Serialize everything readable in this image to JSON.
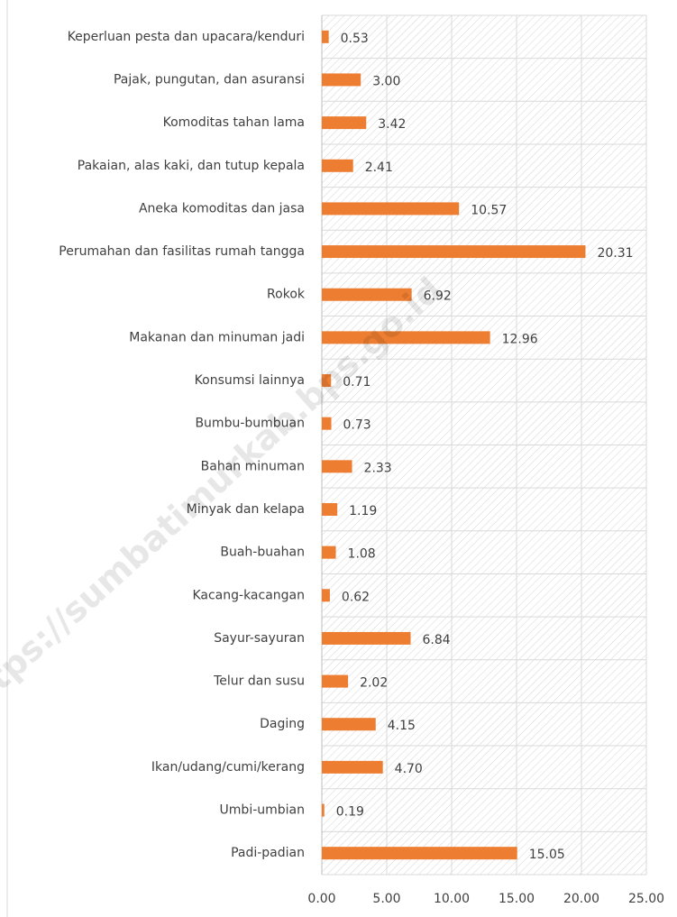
{
  "chart_data": {
    "type": "bar",
    "orientation": "horizontal",
    "categories": [
      "Keperluan pesta dan upacara/kenduri",
      "Pajak, pungutan, dan asuransi",
      "Komoditas tahan lama",
      "Pakaian, alas kaki, dan tutup kepala",
      "Aneka komoditas dan jasa",
      "Perumahan dan fasilitas rumah tangga",
      "Rokok",
      "Makanan dan minuman jadi",
      "Konsumsi lainnya",
      "Bumbu-bumbuan",
      "Bahan minuman",
      "Minyak dan kelapa",
      "Buah-buahan",
      "Kacang-kacangan",
      "Sayur-sayuran",
      "Telur dan susu",
      "Daging",
      "Ikan/udang/cumi/kerang",
      "Umbi-umbian",
      "Padi-padian"
    ],
    "values": [
      0.53,
      3.0,
      3.42,
      2.41,
      10.57,
      20.31,
      6.92,
      12.96,
      0.71,
      0.73,
      2.33,
      1.19,
      1.08,
      0.62,
      6.84,
      2.02,
      4.15,
      4.7,
      0.19,
      15.05
    ],
    "value_labels": [
      "0.53",
      "3.00",
      "3.42",
      "2.41",
      "10.57",
      "20.31",
      "6.92",
      "12.96",
      "0.71",
      "0.73",
      "2.33",
      "1.19",
      "1.08",
      "0.62",
      "6.84",
      "2.02",
      "4.15",
      "4.70",
      "0.19",
      "15.05"
    ],
    "color": "#ed7d31",
    "xlim": [
      0,
      25
    ],
    "xticks": [
      {
        "value": 0,
        "label": "0.00"
      },
      {
        "value": 5,
        "label": "5.00"
      },
      {
        "value": 10,
        "label": "10.00"
      },
      {
        "value": 15,
        "label": "15.00"
      },
      {
        "value": 20,
        "label": "20.00"
      },
      {
        "value": 25,
        "label": "25.00"
      }
    ],
    "grid": true,
    "watermark": "https://sumbatimurkab.bps.go.id"
  }
}
